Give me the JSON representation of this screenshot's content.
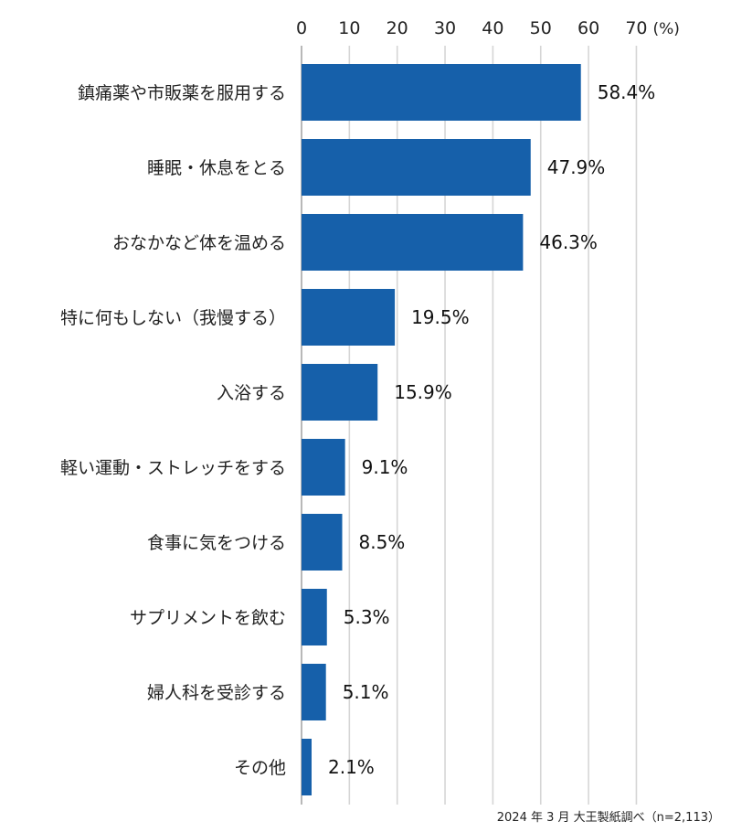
{
  "chart_data": {
    "type": "bar",
    "orientation": "horizontal",
    "categories": [
      "鎮痛薬や市販薬を服用する",
      "睡眠・休息をとる",
      "おなかなど体を温める",
      "特に何もしない（我慢する）",
      "入浴する",
      "軽い運動・ストレッチをする",
      "食事に気をつける",
      "サプリメントを飲む",
      "婦人科を受診する",
      "その他"
    ],
    "values": [
      58.4,
      47.9,
      46.3,
      19.5,
      15.9,
      9.1,
      8.5,
      5.3,
      5.1,
      2.1
    ],
    "value_labels": [
      "58.4%",
      "47.9%",
      "46.3%",
      "19.5%",
      "15.9%",
      "9.1%",
      "8.5%",
      "5.3%",
      "5.1%",
      "2.1%"
    ],
    "xticks": [
      0,
      10,
      20,
      30,
      40,
      50,
      60,
      70
    ],
    "xunit": "(%)",
    "xlim": [
      0,
      80
    ],
    "grid": true,
    "axis_position": "top",
    "bar_color": "#1660AA",
    "grid_color": "#D6D6D6"
  },
  "footer": {
    "source": "2024 年 3 月 大王製紙調べ（n=2,113）"
  }
}
